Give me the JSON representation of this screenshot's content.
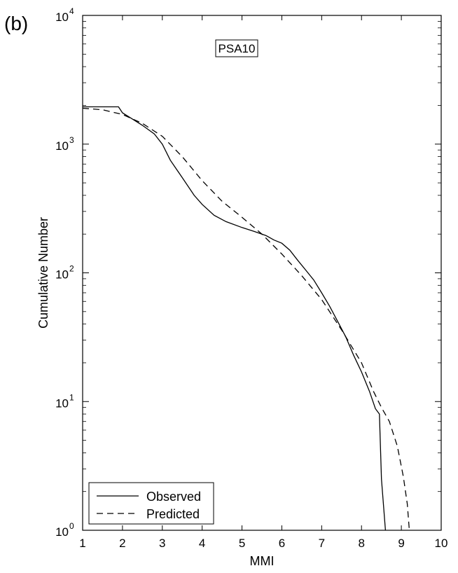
{
  "panel_label": "(b)",
  "chart_data": {
    "type": "line",
    "annotation": "PSA10",
    "xlabel": "MMI",
    "ylabel": "Cumulative Number",
    "xlim": [
      1,
      10
    ],
    "ylim": [
      1,
      10000
    ],
    "yscale": "log",
    "x_ticks": [
      1,
      2,
      3,
      4,
      5,
      6,
      7,
      8,
      9,
      10
    ],
    "x_tick_labels": [
      "1",
      "2",
      "3",
      "4",
      "5",
      "6",
      "7",
      "8",
      "9",
      "10"
    ],
    "y_ticks": [
      1,
      10,
      100,
      1000,
      10000
    ],
    "y_tick_labels": [
      {
        "base": "10",
        "exp": "0"
      },
      {
        "base": "10",
        "exp": "1"
      },
      {
        "base": "10",
        "exp": "2"
      },
      {
        "base": "10",
        "exp": "3"
      },
      {
        "base": "10",
        "exp": "4"
      }
    ],
    "legend": {
      "position": "bottom-left"
    },
    "grid": false,
    "series": [
      {
        "name": "Observed",
        "style": "solid",
        "color": "#000000",
        "x": [
          1.0,
          1.9,
          2.0,
          2.2,
          2.5,
          2.8,
          3.0,
          3.2,
          3.5,
          3.8,
          4.0,
          4.3,
          4.6,
          5.0,
          5.3,
          5.6,
          5.8,
          6.0,
          6.2,
          6.4,
          6.6,
          6.8,
          7.0,
          7.2,
          7.4,
          7.6,
          7.8,
          8.0,
          8.2,
          8.35,
          8.45,
          8.5,
          8.6
        ],
        "y": [
          1950,
          1950,
          1750,
          1600,
          1400,
          1200,
          1000,
          750,
          550,
          400,
          340,
          280,
          250,
          225,
          210,
          195,
          180,
          170,
          150,
          125,
          105,
          88,
          70,
          55,
          42,
          32,
          23,
          17,
          12,
          8.8,
          8.0,
          2.5,
          1.0
        ]
      },
      {
        "name": "Predicted",
        "style": "dashed",
        "color": "#000000",
        "x": [
          1.0,
          1.5,
          2.0,
          2.5,
          3.0,
          3.5,
          4.0,
          4.5,
          5.0,
          5.5,
          6.0,
          6.5,
          7.0,
          7.5,
          8.0,
          8.3,
          8.5,
          8.7,
          8.9,
          9.05,
          9.15,
          9.2
        ],
        "y": [
          1900,
          1850,
          1700,
          1450,
          1150,
          800,
          520,
          360,
          270,
          200,
          140,
          95,
          62,
          36,
          20,
          12,
          9,
          7,
          4.5,
          2.6,
          1.6,
          1.0
        ]
      }
    ]
  }
}
